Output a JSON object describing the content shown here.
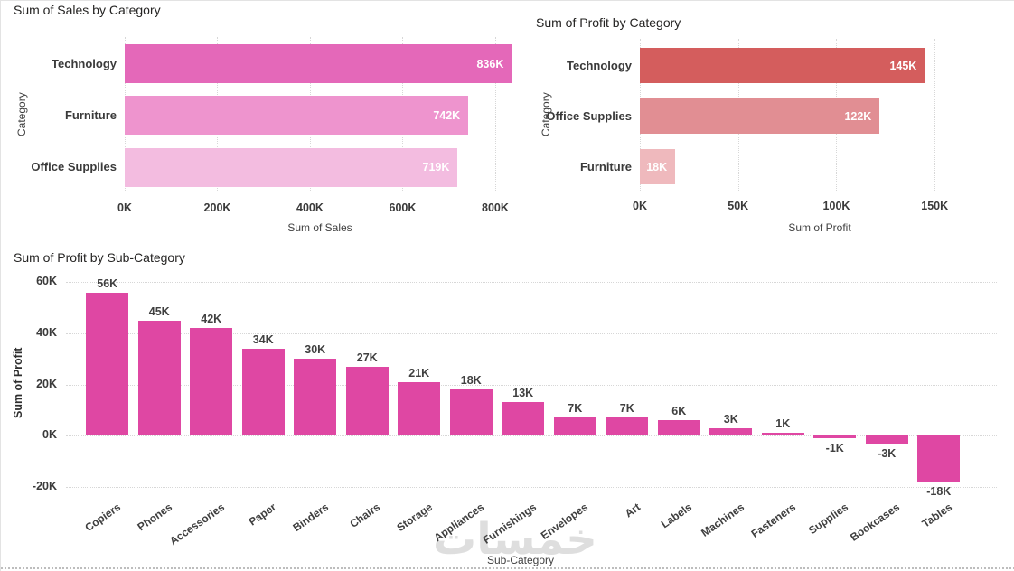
{
  "watermark": {
    "text": "خمسات"
  },
  "chart_data": [
    {
      "id": "sales-by-category",
      "type": "bar",
      "orientation": "horizontal",
      "title": "Sum of Sales by Category",
      "xlabel": "Sum of Sales",
      "ylabel": "Category",
      "categories": [
        "Technology",
        "Furniture",
        "Office Supplies"
      ],
      "values": [
        836,
        742,
        719
      ],
      "data_labels": [
        "836K",
        "742K",
        "719K"
      ],
      "unit": "K",
      "bar_colors": [
        "#e468b9",
        "#ee94ce",
        "#f3bce0"
      ],
      "x_tick_values": [
        0,
        200,
        400,
        600,
        800
      ],
      "x_tick_labels": [
        "0K",
        "200K",
        "400K",
        "600K",
        "800K"
      ],
      "xlim": [
        0,
        845
      ],
      "grid": "vertical-dotted",
      "legend": "none"
    },
    {
      "id": "profit-by-category",
      "type": "bar",
      "orientation": "horizontal",
      "title": "Sum of Profit by Category",
      "xlabel": "Sum of Profit",
      "ylabel": "Category",
      "categories": [
        "Technology",
        "Office Supplies",
        "Furniture"
      ],
      "values": [
        145,
        122,
        18
      ],
      "data_labels": [
        "145K",
        "122K",
        "18K"
      ],
      "unit": "K",
      "bar_colors": [
        "#d45d5d",
        "#e18e93",
        "#efb9bd"
      ],
      "x_tick_values": [
        0,
        50,
        100,
        150
      ],
      "x_tick_labels": [
        "0K",
        "50K",
        "100K",
        "150K"
      ],
      "xlim": [
        0,
        183
      ],
      "grid": "vertical-dotted",
      "legend": "none"
    },
    {
      "id": "profit-by-subcategory",
      "type": "bar",
      "orientation": "vertical",
      "title": "Sum of Profit by Sub-Category",
      "xlabel": "Sub-Category",
      "ylabel": "Sum of Profit",
      "categories": [
        "Copiers",
        "Phones",
        "Accessories",
        "Paper",
        "Binders",
        "Chairs",
        "Storage",
        "Appliances",
        "Furnishings",
        "Envelopes",
        "Art",
        "Labels",
        "Machines",
        "Fasteners",
        "Supplies",
        "Bookcases",
        "Tables"
      ],
      "values": [
        56,
        45,
        42,
        34,
        30,
        27,
        21,
        18,
        13,
        7,
        7,
        6,
        3,
        1,
        -1,
        -3,
        -18
      ],
      "data_labels": [
        "56K",
        "45K",
        "42K",
        "34K",
        "30K",
        "27K",
        "21K",
        "18K",
        "13K",
        "7K",
        "7K",
        "6K",
        "3K",
        "1K",
        "-1K",
        "-3K",
        "-18K"
      ],
      "unit": "K",
      "bar_color": "#df47a3",
      "y_tick_values": [
        60,
        40,
        20,
        0,
        -20
      ],
      "y_tick_labels": [
        "60K",
        "40K",
        "20K",
        "0K",
        "-20K"
      ],
      "ylim": [
        -22.5,
        64
      ],
      "grid": "horizontal-dotted",
      "legend": "none"
    }
  ]
}
